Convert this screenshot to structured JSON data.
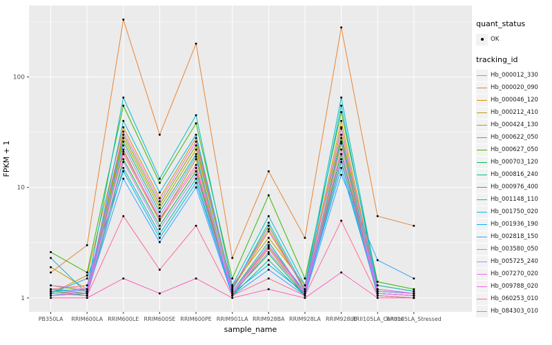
{
  "legend": {
    "quant_status_title": "quant_status",
    "ok_label": "OK",
    "tracking_id_title": "tracking_id"
  },
  "colors": {
    "panel_background": "#EBEBEB",
    "grid": "#FFFFFF",
    "point": "#000000",
    "tick_text": "#4D4D4D",
    "axis_title_text": "#000000",
    "legend_key_background": "#F2F2F2"
  },
  "chart_data": {
    "type": "line",
    "title": "",
    "xlabel": "sample_name",
    "ylabel": "FPKM + 1",
    "y_scale": "log10",
    "y_ticks": [
      1,
      10,
      100
    ],
    "y_minor_ticks": [
      3.162,
      31.62,
      316.2
    ],
    "ylim": [
      1,
      350
    ],
    "grid": true,
    "legend_position": "right",
    "categories": [
      "PB350LA",
      "RRIM600LA",
      "RRIM600LE",
      "RRIM600SE",
      "RRIM600PE",
      "RRIM901LA",
      "RRIM928BA",
      "RRIM928LA",
      "RRIM928LE",
      "RRII105LA_Control",
      "RRII105LA_Stressed"
    ],
    "series": [
      {
        "name": "Hb_000012_330",
        "color": "#F8766D",
        "values": [
          1.2,
          1.3,
          20,
          5,
          15,
          1.1,
          3.0,
          1.1,
          20,
          1.1,
          1.05
        ]
      },
      {
        "name": "Hb_000020_090",
        "color": "#EA8331",
        "values": [
          1.7,
          3.0,
          330,
          30,
          200,
          2.3,
          14,
          3.5,
          280,
          5.5,
          4.5
        ]
      },
      {
        "name": "Hb_000046_120",
        "color": "#D89000",
        "values": [
          1.1,
          1.6,
          35,
          8,
          28,
          1.2,
          4.0,
          1.2,
          40,
          1.2,
          1.1
        ]
      },
      {
        "name": "Hb_000212_410",
        "color": "#C09B00",
        "values": [
          1.9,
          1.2,
          28,
          6.5,
          22,
          1.3,
          3.5,
          1.3,
          30,
          1.3,
          1.15
        ]
      },
      {
        "name": "Hb_000424_130",
        "color": "#A3A500",
        "values": [
          1.05,
          1.1,
          22,
          5,
          18,
          1.05,
          2.8,
          1.05,
          25,
          1.05,
          1.0
        ]
      },
      {
        "name": "Hb_000622_050",
        "color": "#7CAE00",
        "values": [
          1.3,
          1.15,
          30,
          7,
          24,
          1.2,
          4.5,
          1.15,
          35,
          1.15,
          1.1
        ]
      },
      {
        "name": "Hb_000627_050",
        "color": "#39B600",
        "values": [
          2.6,
          1.7,
          55,
          11,
          38,
          1.5,
          8.5,
          1.5,
          48,
          1.4,
          1.2
        ]
      },
      {
        "name": "Hb_000703_120",
        "color": "#00BB4E",
        "values": [
          1.15,
          1.05,
          18,
          4.5,
          14,
          1.1,
          2.5,
          1.05,
          20,
          1.1,
          1.05
        ]
      },
      {
        "name": "Hb_000816_240",
        "color": "#00BF7D",
        "values": [
          1.2,
          1.1,
          26,
          6,
          20,
          1.15,
          3.2,
          1.1,
          28,
          1.15,
          1.1
        ]
      },
      {
        "name": "Hb_000976_400",
        "color": "#00C1A3",
        "values": [
          1.1,
          1.05,
          15,
          3.8,
          12,
          1.05,
          2.2,
          1.05,
          17,
          1.05,
          1.0
        ]
      },
      {
        "name": "Hb_001148_110",
        "color": "#00BFC4",
        "values": [
          1.15,
          1.2,
          65,
          12,
          45,
          1.3,
          5.5,
          1.3,
          65,
          1.3,
          1.15
        ]
      },
      {
        "name": "Hb_001750_020",
        "color": "#00BAE0",
        "values": [
          2.3,
          1.1,
          40,
          9,
          30,
          1.2,
          4.8,
          1.2,
          55,
          1.2,
          1.1
        ]
      },
      {
        "name": "Hb_001936_190",
        "color": "#00B0F6",
        "values": [
          1.1,
          1.5,
          14,
          3.5,
          11,
          1.1,
          2.0,
          1.1,
          15,
          1.1,
          1.05
        ]
      },
      {
        "name": "Hb_002818_150",
        "color": "#35A2FF",
        "values": [
          1.05,
          1.1,
          12,
          3.2,
          10,
          1.05,
          1.8,
          1.05,
          13,
          2.2,
          1.5
        ]
      },
      {
        "name": "Hb_003580_050",
        "color": "#9590FF",
        "values": [
          1.2,
          1.15,
          24,
          5.5,
          19,
          1.15,
          3.0,
          1.15,
          26,
          1.15,
          1.1
        ]
      },
      {
        "name": "Hb_005725_240",
        "color": "#C77CFF",
        "values": [
          1.1,
          1.05,
          17,
          4.2,
          13,
          1.1,
          2.6,
          1.1,
          18,
          1.1,
          1.05
        ]
      },
      {
        "name": "Hb_007270_020",
        "color": "#E76BF3",
        "values": [
          1.3,
          1.2,
          32,
          7.5,
          26,
          1.25,
          4.2,
          1.2,
          34,
          1.2,
          1.1
        ]
      },
      {
        "name": "Hb_009788_020",
        "color": "#FA62DB",
        "values": [
          1.15,
          1.1,
          21,
          5.2,
          16,
          1.1,
          2.9,
          1.1,
          22,
          1.1,
          1.05
        ]
      },
      {
        "name": "Hb_060253_010",
        "color": "#FF62BC",
        "values": [
          1.0,
          1.0,
          1.5,
          1.1,
          1.5,
          1.0,
          1.2,
          1.0,
          1.7,
          1.0,
          1.0
        ]
      },
      {
        "name": "Hb_084303_010",
        "color": "#FF6A98",
        "values": [
          1.1,
          1.05,
          5.5,
          1.8,
          4.5,
          1.05,
          1.5,
          1.05,
          5.0,
          1.05,
          1.0
        ]
      }
    ]
  }
}
